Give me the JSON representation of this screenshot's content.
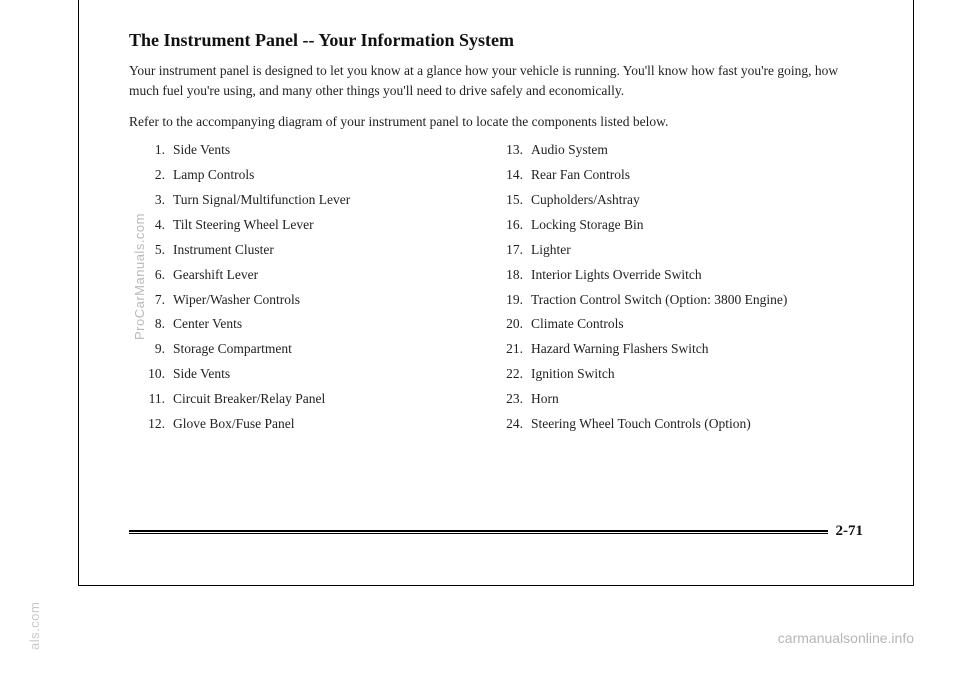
{
  "title": "The Instrument Panel -- Your Information System",
  "intro": "Your instrument panel is designed to let you know at a glance how your vehicle is running. You'll know how fast you're going, how much fuel you're using, and many other things you'll need to drive safely and economically.",
  "refer": "Refer to the accompanying diagram of your instrument panel to locate the components listed below.",
  "leftItems": [
    {
      "n": "1.",
      "t": "Side Vents"
    },
    {
      "n": "2.",
      "t": "Lamp Controls"
    },
    {
      "n": "3.",
      "t": "Turn Signal/Multifunction Lever"
    },
    {
      "n": "4.",
      "t": "Tilt Steering Wheel Lever"
    },
    {
      "n": "5.",
      "t": "Instrument Cluster"
    },
    {
      "n": "6.",
      "t": "Gearshift Lever"
    },
    {
      "n": "7.",
      "t": "Wiper/Washer Controls"
    },
    {
      "n": "8.",
      "t": "Center Vents"
    },
    {
      "n": "9.",
      "t": "Storage Compartment"
    },
    {
      "n": "10.",
      "t": "Side Vents"
    },
    {
      "n": "11.",
      "t": "Circuit Breaker/Relay Panel"
    },
    {
      "n": "12.",
      "t": "Glove Box/Fuse Panel"
    }
  ],
  "rightItems": [
    {
      "n": "13.",
      "t": "Audio System"
    },
    {
      "n": "14.",
      "t": "Rear Fan Controls"
    },
    {
      "n": "15.",
      "t": "Cupholders/Ashtray"
    },
    {
      "n": "16.",
      "t": "Locking Storage Bin"
    },
    {
      "n": "17.",
      "t": "Lighter"
    },
    {
      "n": "18.",
      "t": "Interior Lights Override Switch"
    },
    {
      "n": "19.",
      "t": "Traction Control Switch (Option: 3800 Engine)"
    },
    {
      "n": "20.",
      "t": "Climate Controls"
    },
    {
      "n": "21.",
      "t": "Hazard Warning Flashers Switch"
    },
    {
      "n": "22.",
      "t": "Ignition Switch"
    },
    {
      "n": "23.",
      "t": "Horn"
    },
    {
      "n": "24.",
      "t": "Steering Wheel Touch Controls (Option)"
    }
  ],
  "pageNumber": "2-71",
  "watermarkLeft": "ProCarManuals.com",
  "watermarkBL": "als.com",
  "watermarkBR": "carmanualsonline.info"
}
